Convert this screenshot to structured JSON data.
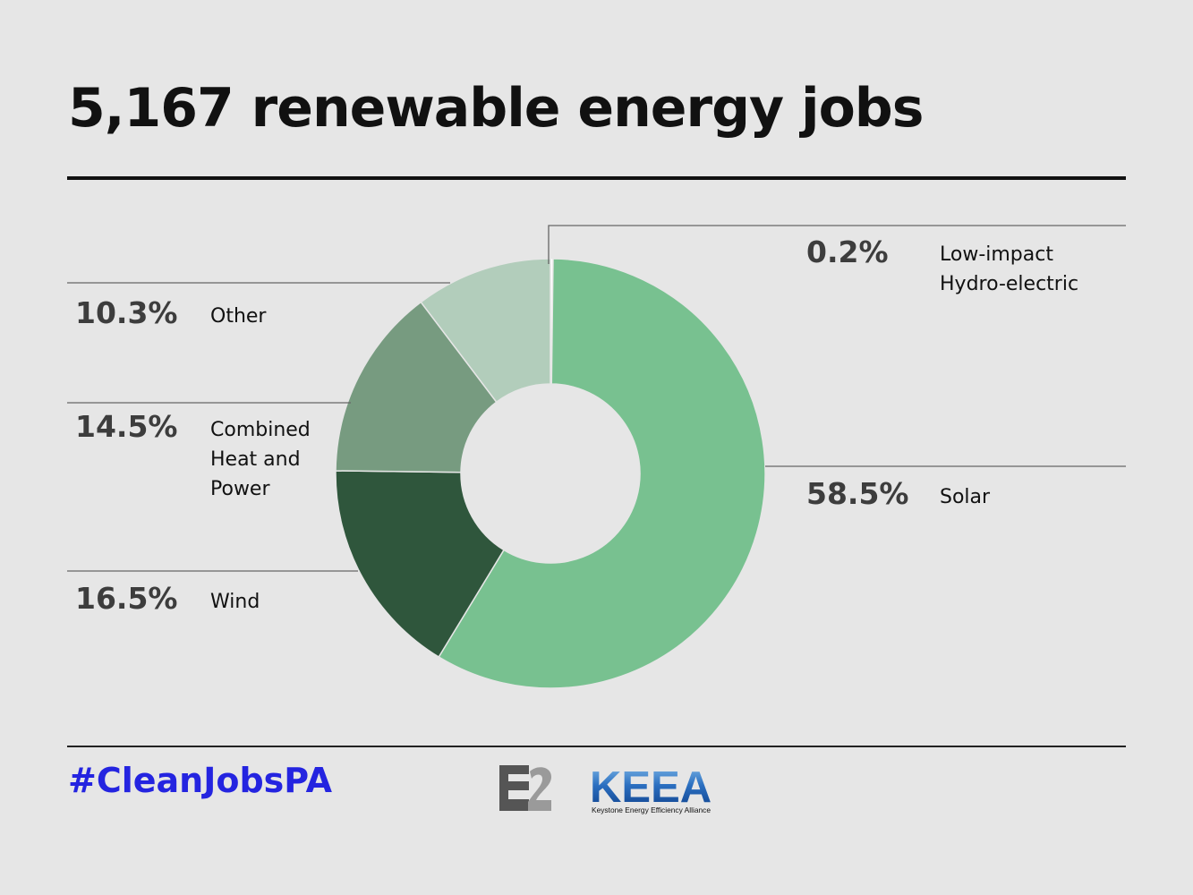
{
  "title": "5,167 renewable energy jobs",
  "hashtag": "#CleanJobsPA",
  "logos": {
    "e2": "E2",
    "keea": "KEEA",
    "keea_subtitle": "Keystone Energy Efficiency Alliance"
  },
  "colors": {
    "background": "#e6e6e6",
    "hashtag": "#2424e0",
    "solar": "#78c190",
    "wind": "#2f563c",
    "combined": "#779b80",
    "other": "#b2cdbb",
    "hydro": "#ffffff"
  },
  "chart_data": {
    "type": "pie",
    "donut": true,
    "title": "5,167 renewable energy jobs",
    "categories": [
      "Low-impact Hydro-electric",
      "Solar",
      "Wind",
      "Combined Heat and Power",
      "Other"
    ],
    "values": [
      0.2,
      58.5,
      16.5,
      14.5,
      10.3
    ],
    "labels": {
      "hydro": {
        "pct": "0.2%",
        "lines": [
          "Low-impact",
          "Hydro-electric"
        ]
      },
      "solar": {
        "pct": "58.5%",
        "lines": [
          "Solar"
        ]
      },
      "wind": {
        "pct": "16.5%",
        "lines": [
          "Wind"
        ]
      },
      "combined": {
        "pct": "14.5%",
        "lines": [
          "Combined",
          "Heat and",
          "Power"
        ]
      },
      "other": {
        "pct": "10.3%",
        "lines": [
          "Other"
        ]
      }
    }
  }
}
